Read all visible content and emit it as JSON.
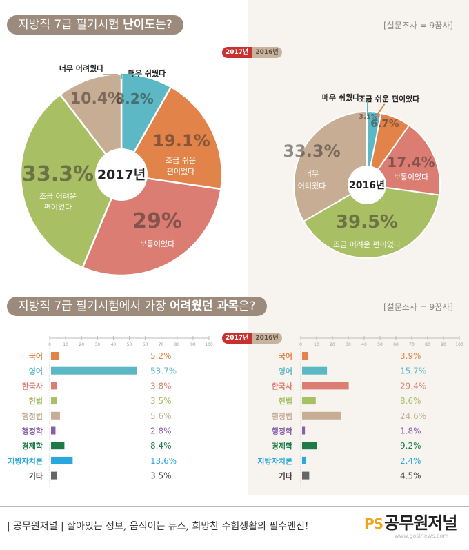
{
  "section1": {
    "title_plain": "지방직 7급  필기시험 ",
    "title_bold": "난이도",
    "title_end": "는?",
    "survey_note": "[설문조사 = 9꿈사]",
    "legend_2017": "2017년",
    "legend_2016": "2016년"
  },
  "section2": {
    "title_plain": "지방직 7급  필기시험에서 가장 ",
    "title_bold": "어려웠던 과목",
    "title_end": "은?",
    "survey_note": "[설문조사 = 9꿈사]",
    "legend_2017": "2017년",
    "legend_2016": "2016년"
  },
  "chart_data": [
    {
      "type": "pie",
      "title": "2017년",
      "slices": [
        {
          "label": "매우 쉬웠다",
          "value": 8.2,
          "value_text": "8.2%",
          "color": "#5cb8c4"
        },
        {
          "label": "조금 쉬운 편이었다",
          "value": 19.1,
          "value_text": "19.1%",
          "color": "#e2844a"
        },
        {
          "label": "보통이었다",
          "value": 29,
          "value_text": "29%",
          "color": "#dc7d73"
        },
        {
          "label": "조금 어려운 편이었다",
          "value": 33.3,
          "value_text": "33.3%",
          "color": "#a8bf64"
        },
        {
          "label": "너무 어려웠다",
          "value": 10.4,
          "value_text": "10.4%",
          "color": "#c6ad94"
        }
      ]
    },
    {
      "type": "pie",
      "title": "2016년",
      "slices": [
        {
          "label": "매우 쉬웠다",
          "value": 3.1,
          "value_text": "3.1%",
          "color": "#5cb8c4"
        },
        {
          "label": "조금 쉬운 편이었다",
          "value": 6.7,
          "value_text": "6.7%",
          "color": "#e2844a"
        },
        {
          "label": "보통이었다",
          "value": 17.4,
          "value_text": "17.4%",
          "color": "#dc7d73"
        },
        {
          "label": "조금 어려운 편이었다",
          "value": 39.5,
          "value_text": "39.5%",
          "color": "#a8bf64"
        },
        {
          "label": "너무 어려웠다",
          "value": 33.3,
          "value_text": "33.3%",
          "color": "#c6ad94"
        }
      ]
    },
    {
      "type": "bar",
      "title": "2017년",
      "categories": [
        "국어",
        "영어",
        "한국사",
        "헌법",
        "행정법",
        "행정학",
        "경제학",
        "지방자치론",
        "기타"
      ],
      "values": [
        5.2,
        53.7,
        3.8,
        3.5,
        5.6,
        2.8,
        8.4,
        13.6,
        3.5
      ],
      "value_labels": [
        "5.2%",
        "53.7%",
        "3.8%",
        "3.5%",
        "5.6%",
        "2.8%",
        "8.4%",
        "13.6%",
        "3.5%"
      ],
      "colors": [
        "#e2844a",
        "#5cb8c4",
        "#dc7d73",
        "#a8bf64",
        "#c6ad94",
        "#8a5fa8",
        "#1e7b48",
        "#2aa7dc",
        "#666666"
      ],
      "xlim": [
        0,
        100
      ],
      "ticks": [
        "0",
        "10",
        "20",
        "30",
        "40",
        "50",
        "60",
        "70",
        "80",
        "90",
        "100"
      ]
    },
    {
      "type": "bar",
      "title": "2016년",
      "categories": [
        "국어",
        "영어",
        "한국사",
        "헌법",
        "행정법",
        "행정학",
        "경제학",
        "지방자치론",
        "기타"
      ],
      "values": [
        3.9,
        15.7,
        29.4,
        8.6,
        24.6,
        1.8,
        9.2,
        2.4,
        4.5
      ],
      "value_labels": [
        "3.9%",
        "15.7%",
        "29.4%",
        "8.6%",
        "24.6%",
        "1.8%",
        "9.2%",
        "2.4%",
        "4.5%"
      ],
      "colors": [
        "#e2844a",
        "#5cb8c4",
        "#dc7d73",
        "#a8bf64",
        "#c6ad94",
        "#8a5fa8",
        "#1e7b48",
        "#2aa7dc",
        "#666666"
      ],
      "xlim": [
        0,
        100
      ],
      "ticks": [
        "0",
        "10",
        "20",
        "30",
        "40",
        "50",
        "60",
        "70",
        "80",
        "90",
        "100"
      ]
    }
  ],
  "footer": {
    "text": "| 공무원저널 |  살아있는 정보, 움직이는 뉴스, 희망찬 수험생활의 필수엔진!",
    "logo_mark": "PS",
    "logo_text": "공무원저널",
    "url": "www.gosinews.com"
  }
}
